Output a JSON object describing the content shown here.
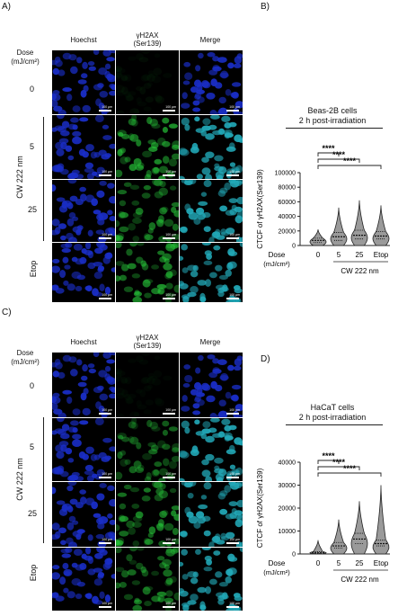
{
  "panels": {
    "A": {
      "label": "A)",
      "columns": [
        "Hoechst",
        "γH2AX",
        "(Ser139)",
        "Merge"
      ],
      "dose_header": [
        "Dose",
        "(mJ/cm²)"
      ],
      "rows": [
        "0",
        "5",
        "25",
        "Etop"
      ],
      "group_label": "CW 222 nm",
      "scale_bar": "100 μm"
    },
    "C": {
      "label": "C)",
      "columns": [
        "Hoechst",
        "γH2AX",
        "(Ser139)",
        "Merge"
      ],
      "dose_header": [
        "Dose",
        "(mJ/cm²)"
      ],
      "rows": [
        "0",
        "5",
        "25",
        "Etop"
      ],
      "group_label": "CW 222 nm",
      "scale_bar": "100 μm"
    }
  },
  "colors": {
    "hoechst": "#1a2ec8",
    "gh2ax": "#27c83a",
    "merge": "#22a9b8",
    "violin_fill": "#9a9a9a",
    "line": "#222222"
  },
  "chart_data": [
    {
      "panel": "B)",
      "type": "violin",
      "title": "Beas-2B cells",
      "subtitle": "2 h post-irradiation",
      "ylabel": "CTCF of γH2AX(Ser139)",
      "xlabel_left": "Dose",
      "xlabel_left2": "(mJ/cm²)",
      "xgroup_label": "CW 222 nm",
      "categories": [
        "0",
        "5",
        "25",
        "Etop"
      ],
      "yticks": [
        "0",
        "20000",
        "40000",
        "60000",
        "80000",
        "100000"
      ],
      "ylim": [
        0,
        100000
      ],
      "medians": [
        7000,
        12000,
        14000,
        13000
      ],
      "q1": [
        4000,
        7000,
        9000,
        9000
      ],
      "q3": [
        10000,
        18000,
        21000,
        19000
      ],
      "max": [
        22000,
        52000,
        62000,
        55000
      ],
      "significance": [
        {
          "from": "0",
          "to": "5",
          "label": "****"
        },
        {
          "from": "0",
          "to": "25",
          "label": "****"
        },
        {
          "from": "0",
          "to": "Etop",
          "label": "****"
        }
      ]
    },
    {
      "panel": "D)",
      "type": "violin",
      "title": "HaCaT cells",
      "subtitle": "2 h post-irradiation",
      "ylabel": "CTCF of γH2AX(Ser139)",
      "xlabel_left": "Dose",
      "xlabel_left2": "(mJ/cm²)",
      "xgroup_label": "CW 222 nm",
      "categories": [
        "0",
        "5",
        "25",
        "Etop"
      ],
      "yticks": [
        "0",
        "10000",
        "20000",
        "30000",
        "40000"
      ],
      "ylim": [
        0,
        40000
      ],
      "medians": [
        500,
        3500,
        6500,
        4500
      ],
      "q1": [
        200,
        2500,
        4500,
        3500
      ],
      "q3": [
        1000,
        5000,
        9000,
        6000
      ],
      "max": [
        6000,
        15000,
        23000,
        30000
      ],
      "significance": [
        {
          "from": "0",
          "to": "5",
          "label": "****"
        },
        {
          "from": "0",
          "to": "25",
          "label": "****"
        },
        {
          "from": "0",
          "to": "Etop",
          "label": "****"
        }
      ]
    }
  ]
}
